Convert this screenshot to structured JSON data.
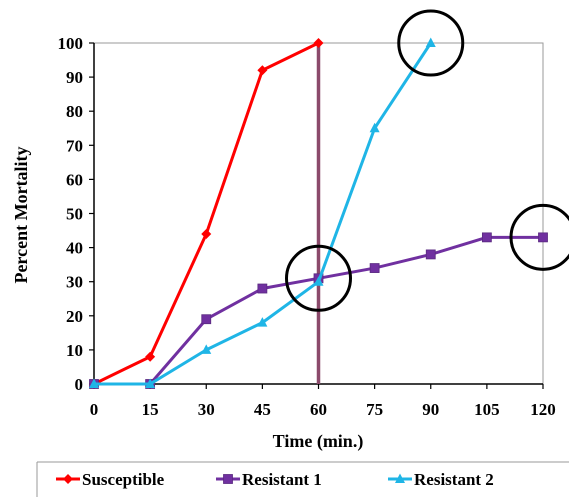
{
  "chart_data": {
    "type": "line",
    "title": "",
    "xlabel": "Time (min.)",
    "ylabel": "Percent Mortality",
    "x": [
      0,
      15,
      30,
      45,
      60,
      75,
      90,
      105,
      120
    ],
    "xticks": [
      "0",
      "15",
      "30",
      "45",
      "60",
      "75",
      "90",
      "105",
      "120"
    ],
    "yticks": [
      "0",
      "10",
      "20",
      "30",
      "40",
      "50",
      "60",
      "70",
      "80",
      "90",
      "100"
    ],
    "xlim": [
      0,
      120
    ],
    "ylim": [
      0,
      100
    ],
    "grid": false,
    "legend_position": "bottom",
    "series": [
      {
        "name": "Susceptible",
        "color": "#ff0000",
        "marker": "diamond",
        "x": [
          0,
          15,
          30,
          45,
          60
        ],
        "values": [
          0,
          8,
          44,
          92,
          100
        ]
      },
      {
        "name": "Resistant 1",
        "color": "#7030a0",
        "marker": "square",
        "x": [
          0,
          15,
          30,
          45,
          60,
          75,
          90,
          105,
          120
        ],
        "values": [
          0,
          0,
          19,
          28,
          31,
          34,
          38,
          43,
          43
        ]
      },
      {
        "name": "Resistant 2",
        "color": "#1fb5e6",
        "marker": "triangle",
        "x": [
          0,
          15,
          30,
          45,
          60,
          75,
          90
        ],
        "values": [
          0,
          0,
          10,
          18,
          30,
          75,
          100
        ]
      }
    ],
    "annotations": {
      "vertical_line": {
        "x": 60,
        "color": "#8b4a6b"
      },
      "circles": [
        {
          "x": 60,
          "y": 31
        },
        {
          "x": 90,
          "y": 100
        },
        {
          "x": 120,
          "y": 43
        }
      ]
    }
  }
}
